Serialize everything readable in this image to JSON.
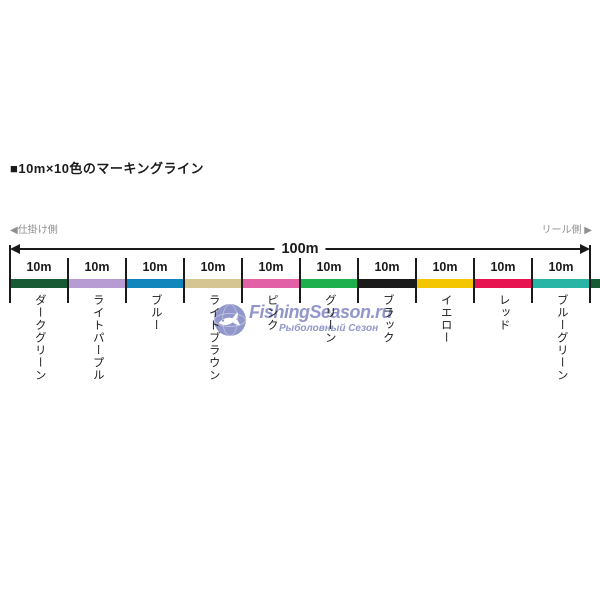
{
  "title": "■10m×10色のマーキングライン",
  "diagram": {
    "left_side_label": "◀仕掛け側",
    "right_side_label": "リール側 ▶",
    "total_length_label": "100m",
    "line_color": "#1a1a1a",
    "side_label_color": "#8f8f8f",
    "segments": [
      {
        "length_label": "10m",
        "color_name": "ダークグリーン",
        "color": "#185a33"
      },
      {
        "length_label": "10m",
        "color_name": "ライトパープル",
        "color": "#b69cd2"
      },
      {
        "length_label": "10m",
        "color_name": "ブルー",
        "color": "#1186bd"
      },
      {
        "length_label": "10m",
        "color_name": "ライトブラウン",
        "color": "#d4c593"
      },
      {
        "length_label": "10m",
        "color_name": "ピンク",
        "color": "#e160a6"
      },
      {
        "length_label": "10m",
        "color_name": "グリーン",
        "color": "#1fb04e"
      },
      {
        "length_label": "10m",
        "color_name": "ブラック",
        "color": "#1b1b1b"
      },
      {
        "length_label": "10m",
        "color_name": "イエロー",
        "color": "#f4c600"
      },
      {
        "length_label": "10m",
        "color_name": "レッド",
        "color": "#e61350"
      },
      {
        "length_label": "10m",
        "color_name": "ブルーグリーン",
        "color": "#28b5a6"
      }
    ],
    "overflow_color": "#185a33"
  },
  "watermark": {
    "site_name": "FishingSeason.ru",
    "subtitle": "Рыболовный Сезон",
    "color": "#7e85c3",
    "logo": "globe-fish-icon"
  }
}
